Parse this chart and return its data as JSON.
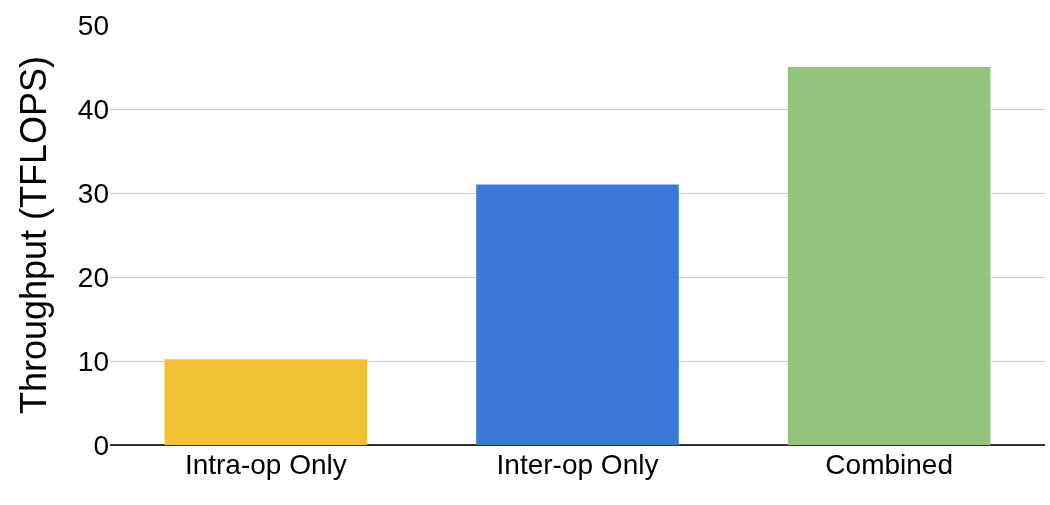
{
  "chart_data": {
    "type": "bar",
    "ylabel": "Throughput (TFLOPS)",
    "categories": [
      "Intra-op Only",
      "Inter-op Only",
      "Combined"
    ],
    "values": [
      10.2,
      31,
      45
    ],
    "colors": [
      "#f1c232",
      "#3c78d8",
      "#93c47d"
    ],
    "ylim": [
      0,
      50
    ],
    "yticks": [
      0,
      10,
      20,
      30,
      40,
      50
    ],
    "grid": "y",
    "legend": false
  }
}
